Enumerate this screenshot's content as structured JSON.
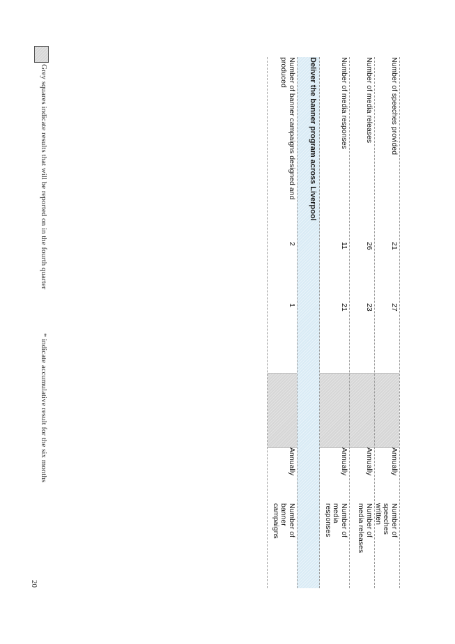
{
  "rows_top": [
    {
      "desc": "Number of speeches provided",
      "v1": "21",
      "v2": "27",
      "v3": "",
      "grey": true,
      "freq": "Annually",
      "measure": "Number of\nspeeches\nwritten"
    },
    {
      "desc": "Number of media releases",
      "v1": "26",
      "v2": "23",
      "v3": "",
      "grey": true,
      "freq": "Annually",
      "measure": "Number of\nmedia releases"
    },
    {
      "desc": "Number of media responses",
      "v1": "11",
      "v2": "21",
      "v3": "",
      "grey": true,
      "freq": "Annually",
      "measure": "Number of\nmedia\nresponses"
    }
  ],
  "section": {
    "title": "Deliver the banner program across Liverpool"
  },
  "rows_bottom": [
    {
      "desc": "Number of banner campaigns designed and\nproduced",
      "v1": "2",
      "v2": "1",
      "v3": "",
      "grey": true,
      "freq": "Annually",
      "measure": "Number of\nbanner\ncampaigns"
    }
  ],
  "legend": {
    "text": "Grey squares indicate results that will be reported on in the fourth quarter",
    "note": "* indicate accumulative result for the six months"
  },
  "page_number": "20"
}
